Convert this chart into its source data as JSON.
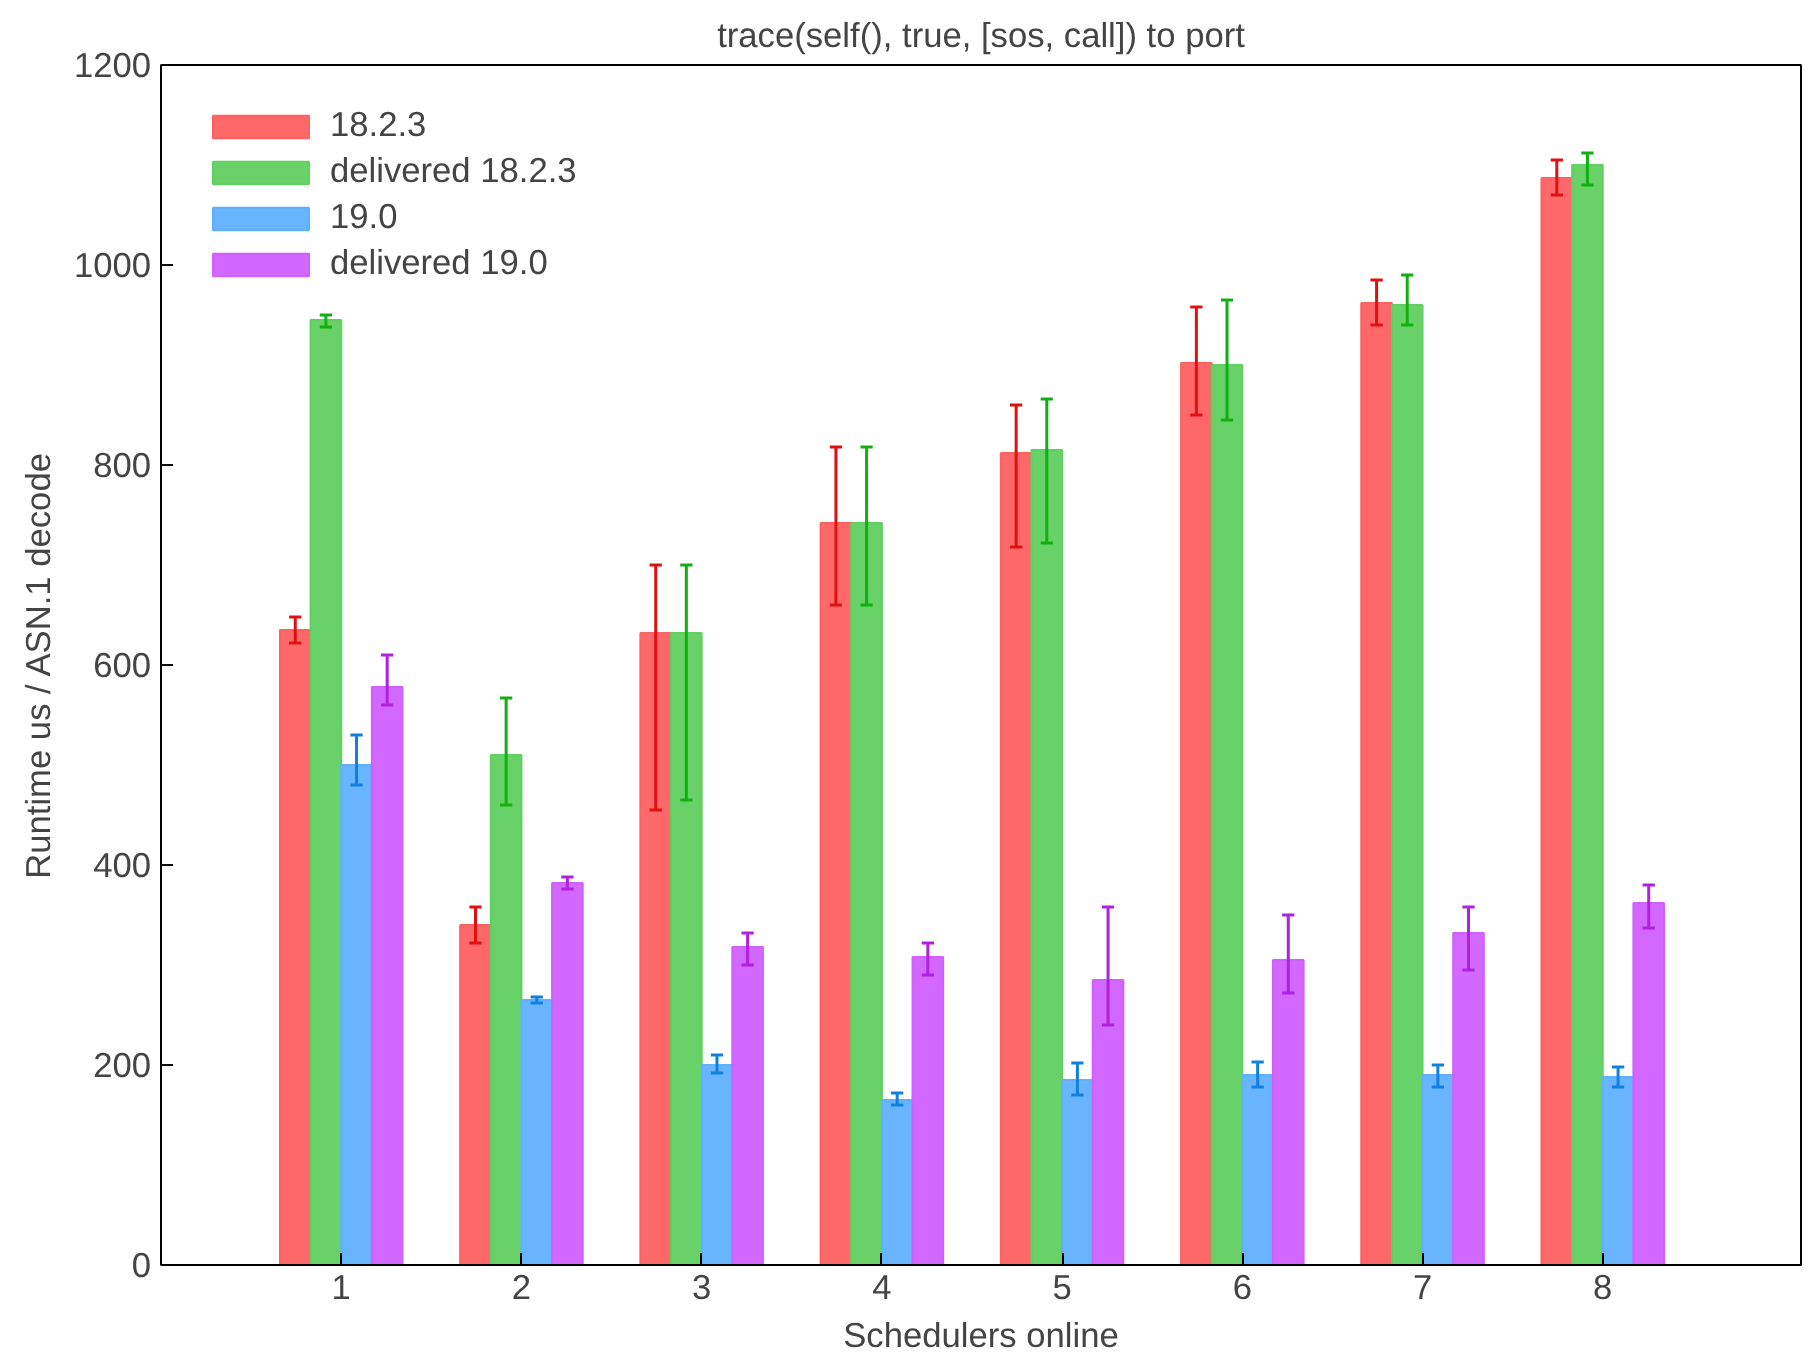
{
  "chart_data": {
    "type": "bar",
    "title": "trace(self(), true, [sos, call]) to port",
    "xlabel": "Schedulers online",
    "ylabel": "Runtime us / ASN.1 decode",
    "x": [
      1,
      2,
      3,
      4,
      5,
      6,
      7,
      8
    ],
    "series": [
      {
        "name": "18.2.3",
        "color": "#ff6060",
        "values": [
          635,
          340,
          632,
          742,
          812,
          902,
          962,
          1087
        ],
        "errors": [
          [
            622,
            648
          ],
          [
            322,
            358
          ],
          [
            455,
            700
          ],
          [
            660,
            818
          ],
          [
            718,
            860
          ],
          [
            850,
            958
          ],
          [
            940,
            985
          ],
          [
            1070,
            1105
          ]
        ]
      },
      {
        "name": "delivered 18.2.3",
        "color": "#60d060",
        "values": [
          945,
          510,
          632,
          742,
          815,
          900,
          960,
          1100
        ],
        "errors": [
          [
            938,
            950
          ],
          [
            460,
            567
          ],
          [
            465,
            700
          ],
          [
            660,
            818
          ],
          [
            722,
            866
          ],
          [
            845,
            965
          ],
          [
            940,
            990
          ],
          [
            1080,
            1112
          ]
        ]
      },
      {
        "name": "19.0",
        "color": "#60b0ff",
        "values": [
          500,
          265,
          200,
          165,
          185,
          190,
          190,
          188
        ],
        "errors": [
          [
            480,
            530
          ],
          [
            262,
            268
          ],
          [
            192,
            210
          ],
          [
            160,
            172
          ],
          [
            170,
            202
          ],
          [
            178,
            203
          ],
          [
            178,
            200
          ],
          [
            178,
            198
          ]
        ]
      },
      {
        "name": "delivered 19.0",
        "color": "#d060ff",
        "values": [
          578,
          382,
          318,
          308,
          285,
          305,
          332,
          362
        ],
        "errors": [
          [
            560,
            610
          ],
          [
            376,
            388
          ],
          [
            300,
            332
          ],
          [
            290,
            322
          ],
          [
            240,
            358
          ],
          [
            272,
            350
          ],
          [
            295,
            358
          ],
          [
            337,
            380
          ]
        ]
      }
    ],
    "xlim": [
      0,
      9.1
    ],
    "xticks": [
      1,
      2,
      3,
      4,
      5,
      6,
      7,
      8
    ],
    "ylim": [
      0,
      1200
    ],
    "yticks": [
      0,
      200,
      400,
      600,
      800,
      1000,
      1200
    ],
    "grid": false,
    "legend": "top left"
  }
}
